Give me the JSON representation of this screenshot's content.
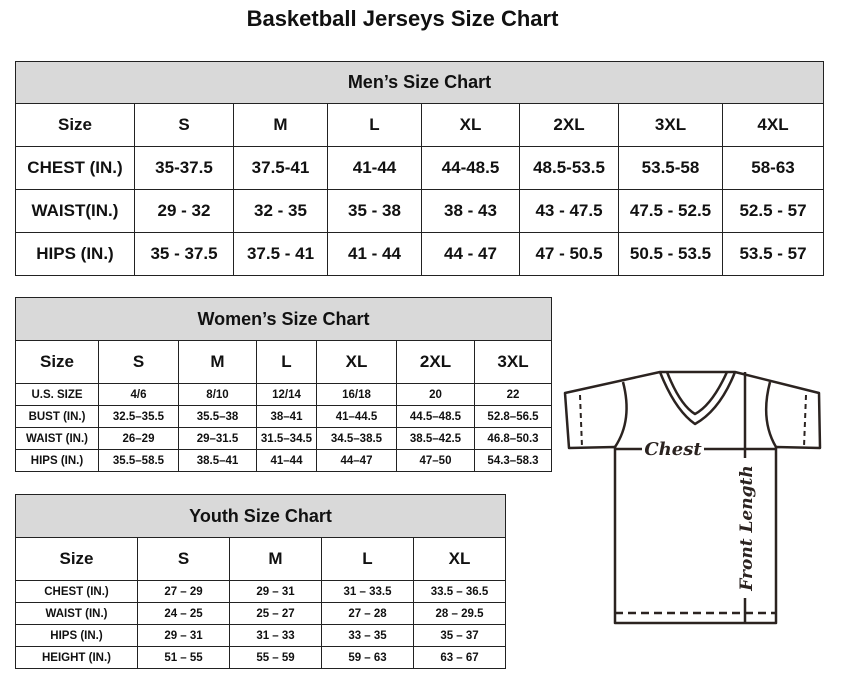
{
  "title": "Basketball Jerseys Size Chart",
  "men": {
    "caption": "Men’s Size Chart",
    "header": [
      "Size",
      "S",
      "M",
      "L",
      "XL",
      "2XL",
      "3XL",
      "4XL"
    ],
    "rows": [
      [
        "CHEST (IN.)",
        "35-37.5",
        "37.5-41",
        "41-44",
        "44-48.5",
        "48.5-53.5",
        "53.5-58",
        "58-63"
      ],
      [
        "WAIST(IN.)",
        "29 - 32",
        "32 - 35",
        "35 - 38",
        "38 - 43",
        "43 - 47.5",
        "47.5 - 52.5",
        "52.5 - 57"
      ],
      [
        "HIPS (IN.)",
        "35 - 37.5",
        "37.5 - 41",
        "41 - 44",
        "44 - 47",
        "47 - 50.5",
        "50.5 - 53.5",
        "53.5 - 57"
      ]
    ]
  },
  "women": {
    "caption": "Women’s Size Chart",
    "header": [
      "Size",
      "S",
      "M",
      "L",
      "XL",
      "2XL",
      "3XL"
    ],
    "rows": [
      [
        "U.S. SIZE",
        "4/6",
        "8/10",
        "12/14",
        "16/18",
        "20",
        "22"
      ],
      [
        "BUST (IN.)",
        "32.5–35.5",
        "35.5–38",
        "38–41",
        "41–44.5",
        "44.5–48.5",
        "52.8–56.5"
      ],
      [
        "WAIST (IN.)",
        "26–29",
        "29–31.5",
        "31.5–34.5",
        "34.5–38.5",
        "38.5–42.5",
        "46.8–50.3"
      ],
      [
        "HIPS (IN.)",
        "35.5–58.5",
        "38.5–41",
        "41–44",
        "44–47",
        "47–50",
        "54.3–58.3"
      ]
    ]
  },
  "youth": {
    "caption": "Youth Size Chart",
    "header": [
      "Size",
      "S",
      "M",
      "L",
      "XL"
    ],
    "rows": [
      [
        "CHEST (IN.)",
        "27 – 29",
        "29 – 31",
        "31 – 33.5",
        "33.5 – 36.5"
      ],
      [
        "WAIST (IN.)",
        "24 – 25",
        "25 – 27",
        "27 – 28",
        "28 – 29.5"
      ],
      [
        "HIPS (IN.)",
        "29 – 31",
        "31 – 33",
        "33 – 35",
        "35 – 37"
      ],
      [
        "HEIGHT (IN.)",
        "51 – 55",
        "55 – 59",
        "59 – 63",
        "63 – 67"
      ]
    ]
  },
  "diagram": {
    "chest_label": "Chest",
    "length_label": "Front Length"
  }
}
